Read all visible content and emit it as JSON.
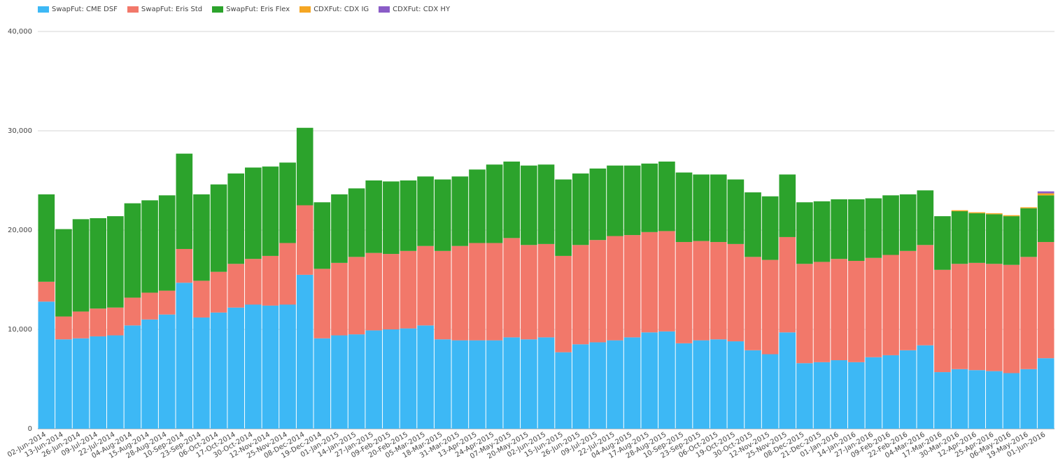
{
  "legend": [
    {
      "label": "SwapFut: CME DSF",
      "color": "#3db8f5"
    },
    {
      "label": "SwapFut: Eris Std",
      "color": "#f2786a"
    },
    {
      "label": "SwapFut: Eris Flex",
      "color": "#2ca32c"
    },
    {
      "label": "CDXFut: CDX IG",
      "color": "#f5a623"
    },
    {
      "label": "CDXFut: CDX HY",
      "color": "#8a5cc7"
    }
  ],
  "chart_data": {
    "type": "bar",
    "stacked": true,
    "ylim": [
      0,
      40000
    ],
    "y_ticks": [
      "0",
      "10,000",
      "20,000",
      "30,000",
      "40,000"
    ],
    "y_tick_values": [
      0,
      10000,
      20000,
      30000,
      40000
    ],
    "grid": true,
    "legend_position": "top-left",
    "categories": [
      "02-Jun-2014",
      "13-Jun-2014",
      "26-Jun-2014",
      "09-Jul-2014",
      "22-Jul-2014",
      "04-Aug-2014",
      "15-Aug-2014",
      "28-Aug-2014",
      "10-Sep-2014",
      "23-Sep-2014",
      "06-Oct-2014",
      "17-Oct-2014",
      "30-Oct-2014",
      "12-Nov-2014",
      "25-Nov-2014",
      "08-Dec-2014",
      "19-Dec-2014",
      "01-Jan-2015",
      "14-Jan-2015",
      "27-Jan-2015",
      "09-Feb-2015",
      "20-Feb-2015",
      "05-Mar-2015",
      "18-Mar-2015",
      "31-Mar-2015",
      "13-Apr-2015",
      "24-Apr-2015",
      "07-May-2015",
      "20-May-2015",
      "02-Jun-2015",
      "15-Jun-2015",
      "26-Jun-2015",
      "09-Jul-2015",
      "22-Jul-2015",
      "04-Aug-2015",
      "17-Aug-2015",
      "28-Aug-2015",
      "10-Sep-2015",
      "23-Sep-2015",
      "06-Oct-2015",
      "19-Oct-2015",
      "30-Oct-2015",
      "12-Nov-2015",
      "25-Nov-2015",
      "08-Dec-2015",
      "21-Dec-2015",
      "01-Jan-2016",
      "14-Jan-2016",
      "27-Jan-2016",
      "09-Feb-2016",
      "22-Feb-2016",
      "04-Mar-2016",
      "17-Mar-2016",
      "30-Mar-2016",
      "12-Apr-2016",
      "25-Apr-2016",
      "06-May-2016",
      "19-May-2016",
      "01-Jun-2016"
    ],
    "series": [
      {
        "name": "SwapFut: CME DSF",
        "color": "#3db8f5",
        "values": [
          12800,
          9000,
          9100,
          9300,
          9400,
          10400,
          11000,
          11500,
          14700,
          11200,
          11700,
          12200,
          12500,
          12400,
          12500,
          15500,
          9100,
          9400,
          9500,
          9900,
          10000,
          10100,
          10400,
          9000,
          8900,
          8900,
          8900,
          9200,
          9000,
          9200,
          7700,
          8500,
          8700,
          8900,
          9200,
          9700,
          9800,
          8600,
          8900,
          9000,
          8800,
          7900,
          7500,
          9700,
          6600,
          6700,
          6900,
          6700,
          7200,
          7400,
          7900,
          8400,
          5700,
          6000,
          5900,
          5800,
          5600,
          6000,
          7100
        ]
      },
      {
        "name": "SwapFut: Eris Std",
        "color": "#f2786a",
        "values": [
          2000,
          2300,
          2700,
          2800,
          2800,
          2800,
          2700,
          2400,
          3400,
          3700,
          4100,
          4400,
          4600,
          5000,
          6200,
          7000,
          7000,
          7300,
          7800,
          7800,
          7600,
          7800,
          8000,
          8900,
          9500,
          9800,
          9800,
          10000,
          9500,
          9400,
          9700,
          10000,
          10300,
          10500,
          10300,
          10100,
          10100,
          10200,
          10000,
          9800,
          9800,
          9400,
          9500,
          9600,
          10000,
          10100,
          10200,
          10200,
          10000,
          10100,
          10000,
          10100,
          10300,
          10600,
          10800,
          10800,
          10900,
          11300,
          11700
        ]
      },
      {
        "name": "SwapFut: Eris Flex",
        "color": "#2ca32c",
        "values": [
          8800,
          8800,
          9300,
          9100,
          9200,
          9500,
          9300,
          9600,
          9600,
          8700,
          8800,
          9100,
          9200,
          9000,
          8100,
          7800,
          6700,
          6900,
          6900,
          7300,
          7300,
          7100,
          7000,
          7200,
          7000,
          7400,
          7900,
          7700,
          8000,
          8000,
          7700,
          7200,
          7200,
          7100,
          7000,
          6900,
          7000,
          7000,
          6700,
          6800,
          6500,
          6500,
          6400,
          6300,
          6200,
          6100,
          6000,
          6200,
          6000,
          6000,
          5700,
          5500,
          5400,
          5300,
          5000,
          5000,
          4900,
          4900,
          4700
        ]
      },
      {
        "name": "CDXFut: CDX IG",
        "color": "#f5a623",
        "values": [
          0,
          0,
          0,
          0,
          0,
          0,
          0,
          0,
          0,
          0,
          0,
          0,
          0,
          0,
          0,
          0,
          0,
          0,
          0,
          0,
          0,
          0,
          0,
          0,
          0,
          0,
          0,
          0,
          0,
          0,
          0,
          0,
          0,
          0,
          0,
          0,
          0,
          0,
          0,
          0,
          0,
          0,
          0,
          0,
          0,
          0,
          0,
          0,
          0,
          0,
          0,
          0,
          0,
          100,
          100,
          100,
          100,
          100,
          200
        ]
      },
      {
        "name": "CDXFut: CDX HY",
        "color": "#8a5cc7",
        "values": [
          0,
          0,
          0,
          0,
          0,
          0,
          0,
          0,
          0,
          0,
          0,
          0,
          0,
          0,
          0,
          0,
          0,
          0,
          0,
          0,
          0,
          0,
          0,
          0,
          0,
          0,
          0,
          0,
          0,
          0,
          0,
          0,
          0,
          0,
          0,
          0,
          0,
          0,
          0,
          0,
          0,
          0,
          0,
          0,
          0,
          0,
          0,
          0,
          0,
          0,
          0,
          0,
          0,
          0,
          0,
          0,
          0,
          0,
          200
        ]
      }
    ]
  }
}
